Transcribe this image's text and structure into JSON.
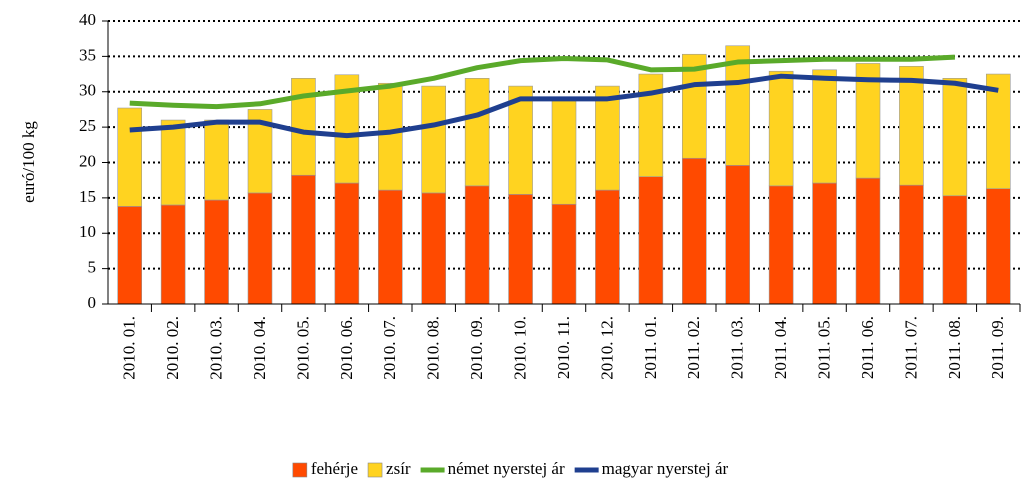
{
  "chart_data": {
    "type": "bar_line",
    "y_label": "euró/100 kg",
    "categories": [
      "2010. 01.",
      "2010. 02.",
      "2010. 03.",
      "2010. 04.",
      "2010. 05.",
      "2010. 06.",
      "2010. 07.",
      "2010. 08.",
      "2010. 09.",
      "2010. 10.",
      "2010. 11.",
      "2010. 12.",
      "2011. 01.",
      "2011. 02.",
      "2011. 03.",
      "2011. 04.",
      "2011. 05.",
      "2011. 06.",
      "2011. 07.",
      "2011. 08.",
      "2011. 09."
    ],
    "ylim": [
      0,
      40
    ],
    "yticks": [
      0,
      5,
      10,
      15,
      20,
      25,
      30,
      35,
      40
    ],
    "grid": true,
    "series": [
      {
        "name": "fehérje",
        "kind": "bar",
        "color": "#ff4a00",
        "values": [
          13.8,
          14.0,
          14.7,
          15.7,
          18.2,
          17.1,
          16.1,
          15.7,
          16.7,
          15.5,
          14.1,
          16.1,
          18.0,
          20.6,
          19.6,
          16.7,
          17.1,
          17.8,
          16.8,
          15.3,
          16.3
        ]
      },
      {
        "name": "zsír",
        "kind": "bar",
        "color": "#ffd320",
        "values": [
          13.9,
          12.0,
          11.3,
          11.8,
          13.7,
          15.3,
          15.1,
          15.1,
          15.2,
          15.3,
          15.1,
          14.7,
          14.5,
          14.7,
          16.9,
          16.2,
          16.0,
          16.2,
          16.8,
          16.6,
          16.2
        ]
      },
      {
        "name": "német nyerstej ár",
        "kind": "line",
        "color": "#5aaa2a",
        "values": [
          28.4,
          28.1,
          27.9,
          28.3,
          29.4,
          30.1,
          30.8,
          31.9,
          33.4,
          34.4,
          34.7,
          34.5,
          33.1,
          33.2,
          34.2,
          34.4,
          34.6,
          34.6,
          34.6,
          34.9,
          null
        ]
      },
      {
        "name": "magyar nyerstej ár",
        "kind": "line",
        "color": "#1f3f8f",
        "values": [
          24.6,
          25.0,
          25.7,
          25.7,
          24.3,
          23.8,
          24.3,
          25.3,
          26.7,
          29.0,
          29.0,
          29.0,
          29.8,
          31.0,
          31.3,
          32.2,
          31.9,
          31.7,
          31.6,
          31.2,
          30.2
        ]
      }
    ]
  }
}
